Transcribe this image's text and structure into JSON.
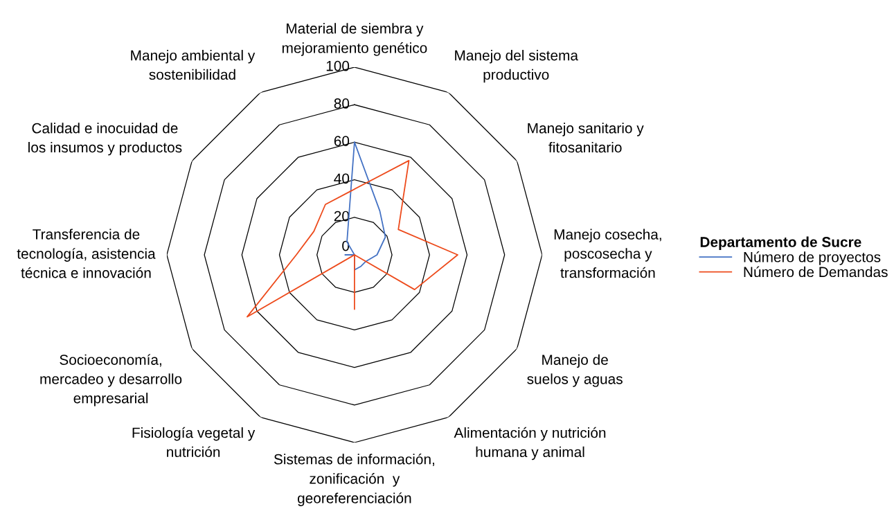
{
  "chart_data": {
    "type": "radar",
    "categories": [
      "Material de siembra y\nmejoramiento genético",
      "Manejo del sistema\nproductivo",
      "Manejo sanitario y\nfitosanitario",
      "Manejo cosecha,\nposcosecha y\ntransformación",
      "Manejo de\nsuelos y aguas",
      "Alimentación y nutrición\nhumana y animal",
      "Sistemas de información,\nzonificación  y\ngeoreferenciación",
      "Fisiología vegetal y\nnutrición",
      "Socioeconomía,\nmercadeo y desarrollo\nempresarial",
      "Transferencia de\ntecnología, asistencia\ntécnica e innovación",
      "Calidad e inocuidad de\nlos insumos y productos",
      "Manejo ambiental y\nsostenibilidad"
    ],
    "series": [
      {
        "name": "Número de proyectos",
        "color": "#4472c4",
        "values": [
          60,
          27,
          19,
          12,
          7,
          7,
          8,
          0,
          0,
          5,
          0,
          8
        ]
      },
      {
        "name": "Número de Demandas",
        "color": "#ed4b1c",
        "values": [
          35,
          58,
          27,
          55,
          37,
          0,
          29,
          0,
          66,
          31,
          25,
          31
        ]
      }
    ],
    "legend_title": "Departamento de Sucre",
    "legend": "right",
    "ylim": [
      0,
      100
    ],
    "yticks": [
      0,
      20,
      40,
      60,
      80,
      100
    ],
    "grid": true,
    "marker": "none",
    "line_style": "solid"
  }
}
